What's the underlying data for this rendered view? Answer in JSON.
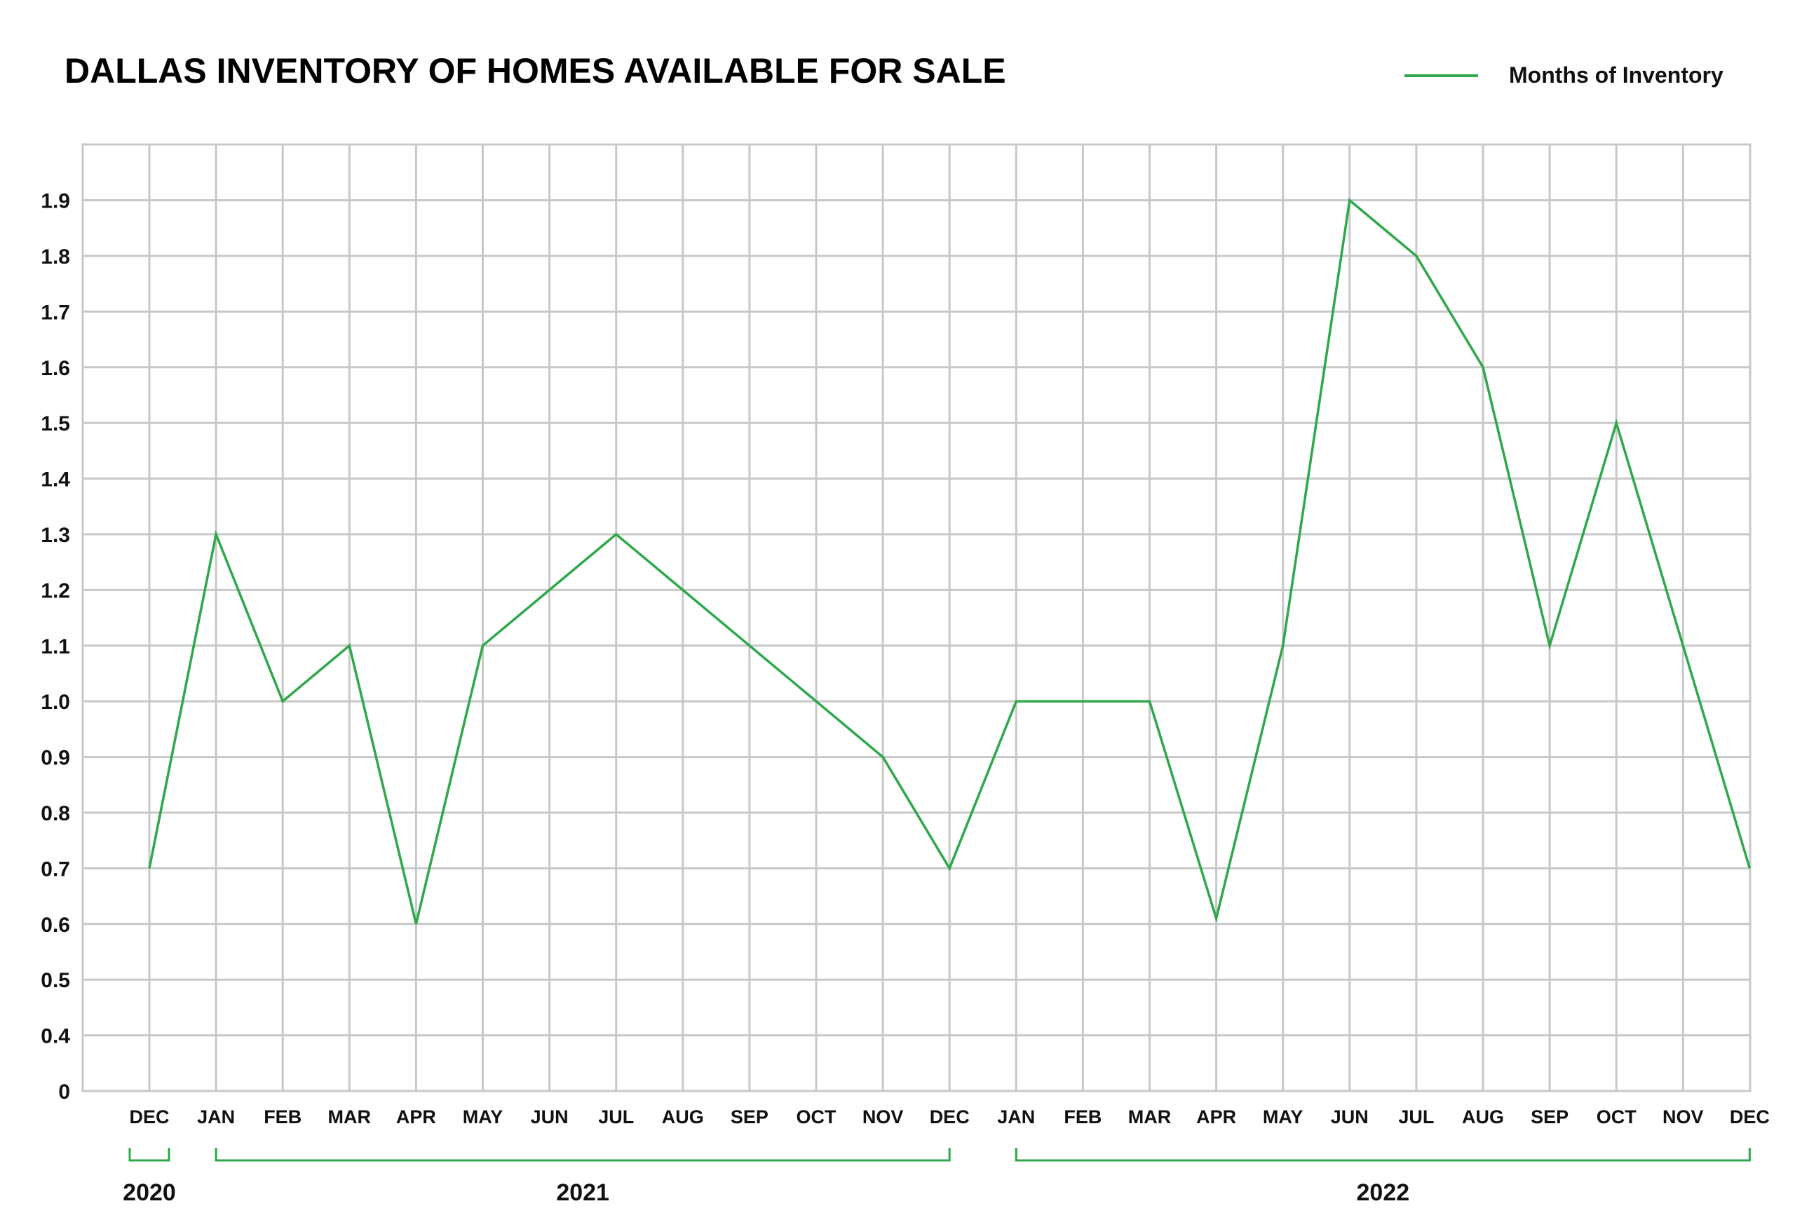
{
  "chart_data": {
    "type": "line",
    "title": "DALLAS INVENTORY OF HOMES AVAILABLE FOR SALE",
    "legend": {
      "position": "top-right"
    },
    "categories": [
      "DEC",
      "JAN",
      "FEB",
      "MAR",
      "APR",
      "MAY",
      "JUN",
      "JUL",
      "AUG",
      "SEP",
      "OCT",
      "NOV",
      "DEC",
      "JAN",
      "FEB",
      "MAR",
      "APR",
      "MAY",
      "JUN",
      "JUL",
      "AUG",
      "SEP",
      "OCT",
      "NOV",
      "DEC"
    ],
    "series": [
      {
        "name": "Months of Inventory",
        "color": "#2ea84a",
        "values": [
          0.7,
          1.3,
          1.0,
          1.1,
          0.6,
          1.1,
          1.2,
          1.3,
          1.2,
          1.1,
          1.0,
          0.9,
          0.7,
          1.0,
          1.0,
          1.0,
          0.61,
          1.1,
          1.9,
          1.8,
          1.6,
          1.1,
          1.5,
          1.1,
          0.7
        ]
      }
    ],
    "ylim": [
      0,
      2.0
    ],
    "yticks": [
      "0",
      "0.4",
      "0.5",
      "0.6",
      "0.7",
      "0.8",
      "0.9",
      "1.0",
      "1.1",
      "1.2",
      "1.3",
      "1.4",
      "1.5",
      "1.6",
      "1.7",
      "1.8",
      "1.9"
    ],
    "year_groups": [
      {
        "label": "2020",
        "start": 0,
        "end": 0
      },
      {
        "label": "2021",
        "start": 1,
        "end": 12
      },
      {
        "label": "2022",
        "start": 13,
        "end": 24
      }
    ],
    "grid": true
  }
}
